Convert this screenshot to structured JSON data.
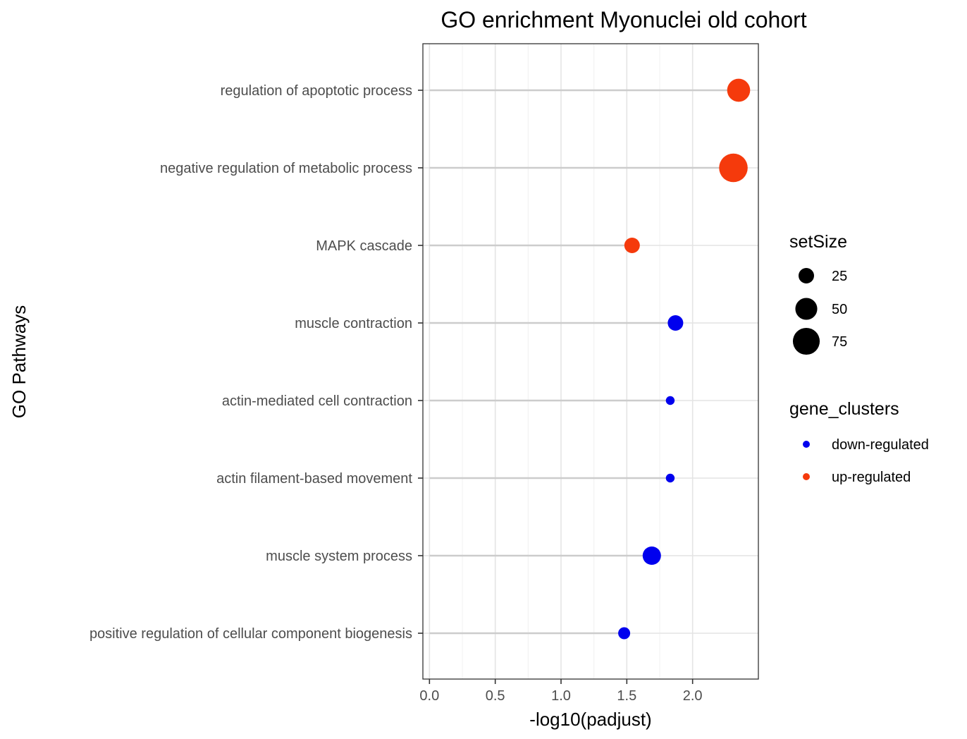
{
  "chart_data": {
    "type": "scatter",
    "title": "GO enrichment Myonuclei old cohort",
    "xlabel": "-log10(padjust)",
    "ylabel": "GO Pathways",
    "xlim": [
      -0.05,
      2.5
    ],
    "x_ticks": [
      0.0,
      0.5,
      1.0,
      1.5,
      2.0
    ],
    "x_tick_labels": [
      "0.0",
      "0.5",
      "1.0",
      "1.5",
      "2.0"
    ],
    "grid": true,
    "categories": [
      "regulation of apoptotic process",
      "negative regulation of metabolic process",
      "MAPK cascade",
      "muscle contraction",
      "actin-mediated cell contraction",
      "actin filament-based movement",
      "muscle system process",
      "positive regulation of cellular component biogenesis"
    ],
    "points": [
      {
        "category": "regulation of apoptotic process",
        "x": 2.35,
        "setSize": 55,
        "cluster": "up-regulated"
      },
      {
        "category": "negative regulation of metabolic process",
        "x": 2.31,
        "setSize": 85,
        "cluster": "up-regulated"
      },
      {
        "category": "MAPK cascade",
        "x": 1.54,
        "setSize": 25,
        "cluster": "up-regulated"
      },
      {
        "category": "muscle contraction",
        "x": 1.87,
        "setSize": 25,
        "cluster": "down-regulated"
      },
      {
        "category": "actin-mediated cell contraction",
        "x": 1.83,
        "setSize": 8,
        "cluster": "down-regulated"
      },
      {
        "category": "actin filament-based movement",
        "x": 1.83,
        "setSize": 8,
        "cluster": "down-regulated"
      },
      {
        "category": "muscle system process",
        "x": 1.69,
        "setSize": 35,
        "cluster": "down-regulated"
      },
      {
        "category": "positive regulation of cellular component biogenesis",
        "x": 1.48,
        "setSize": 15,
        "cluster": "down-regulated"
      }
    ],
    "legend_size": {
      "title": "setSize",
      "entries": [
        {
          "label": "25",
          "value": 25
        },
        {
          "label": "50",
          "value": 50
        },
        {
          "label": "75",
          "value": 75
        }
      ]
    },
    "legend_color": {
      "title": "gene_clusters",
      "entries": [
        {
          "label": "down-regulated",
          "color": "#0000ee"
        },
        {
          "label": "up-regulated",
          "color": "#f53a0c"
        }
      ]
    },
    "legend_placement": "right",
    "colors": {
      "down-regulated": "#0000ee",
      "up-regulated": "#f53a0c",
      "segment": "#cccccc"
    }
  }
}
